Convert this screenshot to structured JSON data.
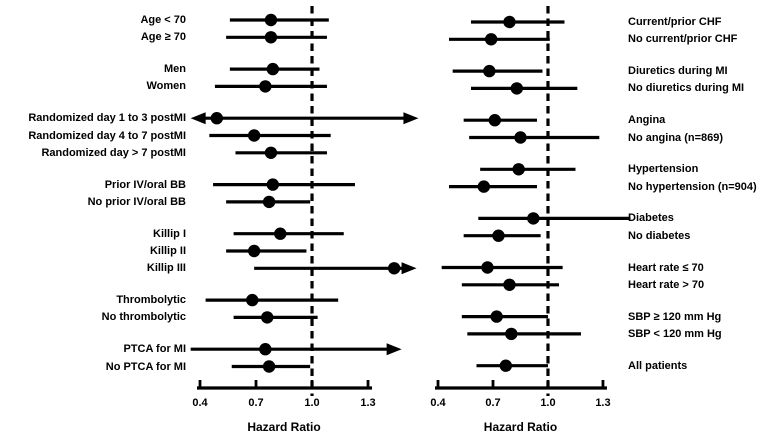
{
  "figure": {
    "background": "#ffffff",
    "ink_color": "#000000"
  },
  "chart_data": {
    "type": "forest",
    "title": "",
    "xlabel": "Hazard Ratio",
    "reference_line": 1.0,
    "axis": {
      "range": [
        0.4,
        1.3
      ],
      "ticks": [
        0.4,
        0.7,
        1.0,
        1.3
      ],
      "tick_labels": [
        "0.4",
        "0.7",
        "1.0",
        "1.3"
      ]
    },
    "panels": [
      {
        "name": "left",
        "label_side": "left",
        "xlabel": "Hazard Ratio",
        "groups": [
          {
            "rows": [
              {
                "label": "Age < 70",
                "hr": 0.78,
                "lo": 0.56,
                "hi": 1.09
              },
              {
                "label": "Age ≥ 70",
                "hr": 0.78,
                "lo": 0.54,
                "hi": 1.08
              }
            ]
          },
          {
            "rows": [
              {
                "label": "Men",
                "hr": 0.79,
                "lo": 0.56,
                "hi": 1.04
              },
              {
                "label": "Women",
                "hr": 0.75,
                "lo": 0.48,
                "hi": 1.08
              }
            ]
          },
          {
            "rows": [
              {
                "label": "Randomized day 1 to 3 postMI",
                "hr": 0.49,
                "lo": 0.35,
                "hi": 1.57,
                "arrow_lo": true,
                "arrow_hi": true
              },
              {
                "label": "Randomized day 4 to 7 postMI",
                "hr": 0.69,
                "lo": 0.45,
                "hi": 1.1
              },
              {
                "label": "Randomized day > 7 postMI",
                "hr": 0.78,
                "lo": 0.59,
                "hi": 1.08
              }
            ]
          },
          {
            "rows": [
              {
                "label": "Prior IV/oral BB",
                "hr": 0.79,
                "lo": 0.47,
                "hi": 1.23
              },
              {
                "label": "No prior IV/oral BB",
                "hr": 0.77,
                "lo": 0.54,
                "hi": 0.99
              }
            ]
          },
          {
            "rows": [
              {
                "label": "Killip I",
                "hr": 0.83,
                "lo": 0.58,
                "hi": 1.17
              },
              {
                "label": "Killip II",
                "hr": 0.69,
                "lo": 0.54,
                "hi": 0.97
              },
              {
                "label": "Killip III",
                "hr": 1.44,
                "lo": 0.69,
                "hi": 1.56,
                "arrow_hi": true
              }
            ]
          },
          {
            "rows": [
              {
                "label": "Thrombolytic",
                "hr": 0.68,
                "lo": 0.43,
                "hi": 1.14
              },
              {
                "label": "No thrombolytic",
                "hr": 0.76,
                "lo": 0.58,
                "hi": 1.03
              }
            ]
          },
          {
            "rows": [
              {
                "label": "PTCA for MI",
                "hr": 0.75,
                "lo": 0.35,
                "hi": 1.48,
                "arrow_hi": true
              },
              {
                "label": "No PTCA for MI",
                "hr": 0.77,
                "lo": 0.57,
                "hi": 0.99
              }
            ]
          }
        ]
      },
      {
        "name": "right",
        "label_side": "right",
        "xlabel": "Hazard Ratio",
        "groups": [
          {
            "rows": [
              {
                "label": "Current/prior CHF",
                "hr": 0.79,
                "lo": 0.58,
                "hi": 1.09
              },
              {
                "label": "No current/prior CHF",
                "hr": 0.69,
                "lo": 0.46,
                "hi": 1.01
              }
            ]
          },
          {
            "rows": [
              {
                "label": "Diuretics during MI",
                "hr": 0.68,
                "lo": 0.48,
                "hi": 0.97
              },
              {
                "label": "No diuretics during MI",
                "hr": 0.83,
                "lo": 0.58,
                "hi": 1.16
              }
            ]
          },
          {
            "rows": [
              {
                "label": "Angina",
                "hr": 0.71,
                "lo": 0.54,
                "hi": 0.94
              },
              {
                "label": "No angina (n=869)",
                "hr": 0.85,
                "lo": 0.57,
                "hi": 1.28
              }
            ]
          },
          {
            "rows": [
              {
                "label": "Hypertension",
                "hr": 0.84,
                "lo": 0.63,
                "hi": 1.15
              },
              {
                "label": "No hypertension (n=904)",
                "hr": 0.65,
                "lo": 0.46,
                "hi": 0.94
              }
            ]
          },
          {
            "rows": [
              {
                "label": "Diabetes",
                "hr": 0.92,
                "lo": 0.62,
                "hi": 1.45
              },
              {
                "label": "No diabetes",
                "hr": 0.73,
                "lo": 0.54,
                "hi": 0.96
              }
            ]
          },
          {
            "rows": [
              {
                "label": "Heart rate ≤ 70",
                "hr": 0.67,
                "lo": 0.42,
                "hi": 1.08
              },
              {
                "label": "Heart rate > 70",
                "hr": 0.79,
                "lo": 0.53,
                "hi": 1.06
              }
            ]
          },
          {
            "rows": [
              {
                "label": "SBP ≥ 120 mm Hg",
                "hr": 0.72,
                "lo": 0.53,
                "hi": 1.0
              },
              {
                "label": "SBP < 120 mm Hg",
                "hr": 0.8,
                "lo": 0.56,
                "hi": 1.18
              }
            ]
          },
          {
            "rows": [
              {
                "label": "All patients",
                "hr": 0.77,
                "lo": 0.61,
                "hi": 1.0
              }
            ]
          }
        ]
      }
    ]
  }
}
